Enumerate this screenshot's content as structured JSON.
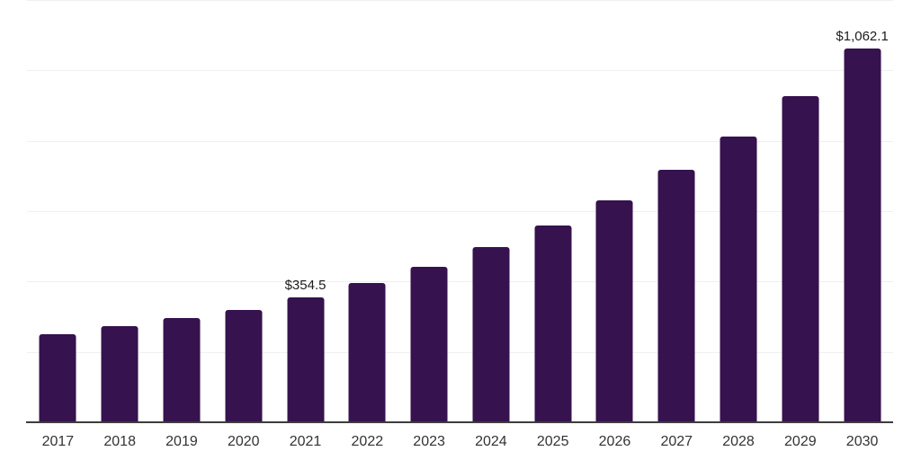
{
  "chart_data": {
    "type": "bar",
    "title": "",
    "categories": [
      "2017",
      "2018",
      "2019",
      "2020",
      "2021",
      "2022",
      "2023",
      "2024",
      "2025",
      "2026",
      "2027",
      "2028",
      "2029",
      "2030"
    ],
    "values": [
      250,
      272,
      295,
      318,
      354.5,
      396,
      442,
      497,
      559,
      631,
      717,
      813,
      926,
      1062.1
    ],
    "data_labels": [
      "",
      "",
      "",
      "",
      "$354.5",
      "",
      "",
      "",
      "",
      "",
      "",
      "",
      "",
      "$1,062.1"
    ],
    "xlabel": "",
    "ylabel": "",
    "ylim": [
      0,
      1200
    ],
    "gridline_step": 200,
    "grid": true,
    "legend": false,
    "colors": {
      "bar": "#36124E",
      "gridline": "#f0f0f0",
      "axis_line": "#3d3d3d",
      "tick_label": "#333333",
      "value_label": "#1c1c1c",
      "background": "#ffffff"
    }
  }
}
